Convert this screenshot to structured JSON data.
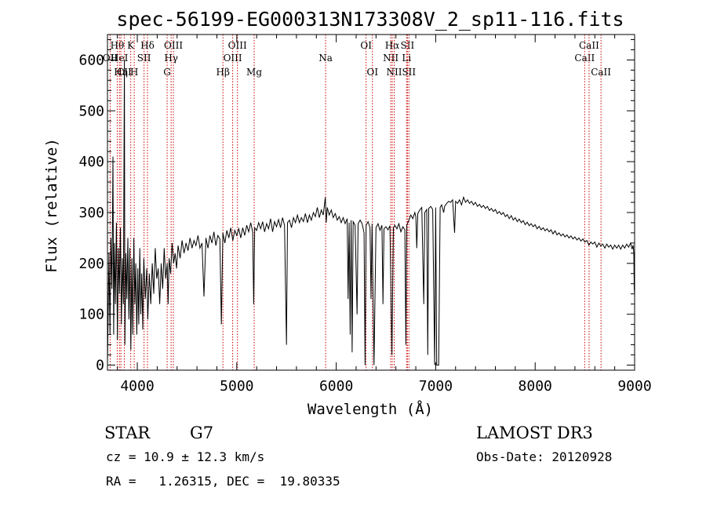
{
  "chart_data": {
    "type": "line",
    "title": "spec-56199-EG000313N173308V_2_sp11-116.fits",
    "xlabel": "Wavelength (Å)",
    "ylabel": "Flux (relative)",
    "xlim": [
      3700,
      9000
    ],
    "ylim": [
      -10,
      650
    ],
    "x_ticks": [
      4000,
      5000,
      6000,
      7000,
      8000,
      9000
    ],
    "y_ticks": [
      0,
      100,
      200,
      300,
      400,
      500,
      600
    ],
    "spectrum": {
      "name": "flux",
      "points": [
        [
          3700,
          0
        ],
        [
          3715,
          220
        ],
        [
          3725,
          60
        ],
        [
          3735,
          250
        ],
        [
          3745,
          150
        ],
        [
          3755,
          410
        ],
        [
          3762,
          60
        ],
        [
          3770,
          240
        ],
        [
          3780,
          120
        ],
        [
          3790,
          280
        ],
        [
          3800,
          50
        ],
        [
          3810,
          230
        ],
        [
          3820,
          140
        ],
        [
          3830,
          270
        ],
        [
          3840,
          80
        ],
        [
          3850,
          210
        ],
        [
          3860,
          120
        ],
        [
          3870,
          600
        ],
        [
          3875,
          40
        ],
        [
          3885,
          220
        ],
        [
          3895,
          130
        ],
        [
          3905,
          250
        ],
        [
          3915,
          90
        ],
        [
          3925,
          230
        ],
        [
          3935,
          30
        ],
        [
          3945,
          210
        ],
        [
          3955,
          60
        ],
        [
          3965,
          250
        ],
        [
          3975,
          120
        ],
        [
          3985,
          200
        ],
        [
          3995,
          60
        ],
        [
          4005,
          190
        ],
        [
          4015,
          80
        ],
        [
          4025,
          230
        ],
        [
          4035,
          100
        ],
        [
          4045,
          180
        ],
        [
          4055,
          70
        ],
        [
          4065,
          210
        ],
        [
          4080,
          130
        ],
        [
          4095,
          190
        ],
        [
          4105,
          90
        ],
        [
          4120,
          180
        ],
        [
          4135,
          120
        ],
        [
          4150,
          200
        ],
        [
          4165,
          140
        ],
        [
          4180,
          230
        ],
        [
          4195,
          170
        ],
        [
          4210,
          190
        ],
        [
          4225,
          120
        ],
        [
          4240,
          200
        ],
        [
          4255,
          150
        ],
        [
          4270,
          230
        ],
        [
          4285,
          170
        ],
        [
          4300,
          200
        ],
        [
          4310,
          120
        ],
        [
          4320,
          210
        ],
        [
          4335,
          180
        ],
        [
          4350,
          240
        ],
        [
          4365,
          200
        ],
        [
          4380,
          220
        ],
        [
          4395,
          190
        ],
        [
          4410,
          235
        ],
        [
          4430,
          210
        ],
        [
          4450,
          245
        ],
        [
          4470,
          220
        ],
        [
          4490,
          240
        ],
        [
          4510,
          225
        ],
        [
          4530,
          250
        ],
        [
          4550,
          230
        ],
        [
          4570,
          245
        ],
        [
          4590,
          235
        ],
        [
          4610,
          255
        ],
        [
          4630,
          230
        ],
        [
          4650,
          240
        ],
        [
          4670,
          135
        ],
        [
          4690,
          250
        ],
        [
          4710,
          230
        ],
        [
          4730,
          255
        ],
        [
          4750,
          240
        ],
        [
          4770,
          262
        ],
        [
          4790,
          235
        ],
        [
          4810,
          255
        ],
        [
          4830,
          248
        ],
        [
          4845,
          80
        ],
        [
          4860,
          260
        ],
        [
          4880,
          240
        ],
        [
          4900,
          265
        ],
        [
          4920,
          250
        ],
        [
          4940,
          270
        ],
        [
          4960,
          245
        ],
        [
          4980,
          265
        ],
        [
          5000,
          255
        ],
        [
          5020,
          268
        ],
        [
          5040,
          250
        ],
        [
          5060,
          270
        ],
        [
          5080,
          255
        ],
        [
          5100,
          275
        ],
        [
          5120,
          262
        ],
        [
          5140,
          280
        ],
        [
          5160,
          262
        ],
        [
          5170,
          120
        ],
        [
          5180,
          270
        ],
        [
          5200,
          265
        ],
        [
          5220,
          280
        ],
        [
          5240,
          268
        ],
        [
          5260,
          282
        ],
        [
          5280,
          262
        ],
        [
          5300,
          278
        ],
        [
          5320,
          268
        ],
        [
          5340,
          288
        ],
        [
          5360,
          262
        ],
        [
          5380,
          282
        ],
        [
          5400,
          272
        ],
        [
          5420,
          286
        ],
        [
          5440,
          270
        ],
        [
          5460,
          290
        ],
        [
          5480,
          275
        ],
        [
          5500,
          40
        ],
        [
          5510,
          280
        ],
        [
          5530,
          285
        ],
        [
          5550,
          270
        ],
        [
          5570,
          290
        ],
        [
          5590,
          280
        ],
        [
          5610,
          295
        ],
        [
          5630,
          280
        ],
        [
          5650,
          290
        ],
        [
          5670,
          282
        ],
        [
          5690,
          298
        ],
        [
          5710,
          280
        ],
        [
          5730,
          295
        ],
        [
          5750,
          285
        ],
        [
          5770,
          300
        ],
        [
          5790,
          292
        ],
        [
          5810,
          310
        ],
        [
          5830,
          290
        ],
        [
          5850,
          305
        ],
        [
          5870,
          295
        ],
        [
          5890,
          330
        ],
        [
          5900,
          280
        ],
        [
          5910,
          310
        ],
        [
          5930,
          295
        ],
        [
          5950,
          305
        ],
        [
          5970,
          290
        ],
        [
          5990,
          298
        ],
        [
          6010,
          285
        ],
        [
          6030,
          292
        ],
        [
          6050,
          280
        ],
        [
          6070,
          290
        ],
        [
          6090,
          278
        ],
        [
          6110,
          288
        ],
        [
          6120,
          130
        ],
        [
          6130,
          280
        ],
        [
          6140,
          60
        ],
        [
          6150,
          285
        ],
        [
          6160,
          25
        ],
        [
          6170,
          282
        ],
        [
          6190,
          275
        ],
        [
          6210,
          100
        ],
        [
          6220,
          278
        ],
        [
          6240,
          285
        ],
        [
          6260,
          278
        ],
        [
          6280,
          260
        ],
        [
          6290,
          0
        ],
        [
          6300,
          275
        ],
        [
          6320,
          282
        ],
        [
          6340,
          270
        ],
        [
          6350,
          130
        ],
        [
          6360,
          278
        ],
        [
          6380,
          0
        ],
        [
          6400,
          270
        ],
        [
          6420,
          278
        ],
        [
          6440,
          265
        ],
        [
          6460,
          275
        ],
        [
          6470,
          120
        ],
        [
          6480,
          268
        ],
        [
          6500,
          272
        ],
        [
          6520,
          266
        ],
        [
          6540,
          274
        ],
        [
          6560,
          20
        ],
        [
          6575,
          270
        ],
        [
          6590,
          275
        ],
        [
          6610,
          268
        ],
        [
          6630,
          278
        ],
        [
          6650,
          262
        ],
        [
          6670,
          272
        ],
        [
          6690,
          266
        ],
        [
          6700,
          40
        ],
        [
          6710,
          275
        ],
        [
          6730,
          285
        ],
        [
          6750,
          295
        ],
        [
          6770,
          288
        ],
        [
          6790,
          300
        ],
        [
          6800,
          292
        ],
        [
          6810,
          230
        ],
        [
          6820,
          298
        ],
        [
          6840,
          305
        ],
        [
          6860,
          310
        ],
        [
          6880,
          120
        ],
        [
          6890,
          300
        ],
        [
          6910,
          306
        ],
        [
          6920,
          20
        ],
        [
          6930,
          308
        ],
        [
          6950,
          312
        ],
        [
          6970,
          306
        ],
        [
          6990,
          0
        ],
        [
          7000,
          310
        ],
        [
          7010,
          0
        ],
        [
          7030,
          0
        ],
        [
          7045,
          310
        ],
        [
          7060,
          315
        ],
        [
          7080,
          300
        ],
        [
          7090,
          312
        ],
        [
          7110,
          318
        ],
        [
          7130,
          322
        ],
        [
          7150,
          320
        ],
        [
          7170,
          325
        ],
        [
          7190,
          260
        ],
        [
          7200,
          322
        ],
        [
          7220,
          318
        ],
        [
          7240,
          325
        ],
        [
          7260,
          315
        ],
        [
          7280,
          330
        ],
        [
          7300,
          320
        ],
        [
          7320,
          325
        ],
        [
          7340,
          318
        ],
        [
          7360,
          322
        ],
        [
          7380,
          315
        ],
        [
          7400,
          320
        ],
        [
          7420,
          312
        ],
        [
          7440,
          316
        ],
        [
          7460,
          310
        ],
        [
          7480,
          314
        ],
        [
          7500,
          308
        ],
        [
          7520,
          312
        ],
        [
          7540,
          304
        ],
        [
          7560,
          308
        ],
        [
          7580,
          302
        ],
        [
          7600,
          306
        ],
        [
          7620,
          298
        ],
        [
          7640,
          302
        ],
        [
          7660,
          296
        ],
        [
          7680,
          300
        ],
        [
          7700,
          292
        ],
        [
          7720,
          296
        ],
        [
          7740,
          288
        ],
        [
          7760,
          294
        ],
        [
          7780,
          285
        ],
        [
          7800,
          290
        ],
        [
          7820,
          282
        ],
        [
          7840,
          287
        ],
        [
          7860,
          280
        ],
        [
          7880,
          284
        ],
        [
          7900,
          276
        ],
        [
          7920,
          281
        ],
        [
          7940,
          274
        ],
        [
          7960,
          278
        ],
        [
          7980,
          272
        ],
        [
          8000,
          276
        ],
        [
          8020,
          268
        ],
        [
          8040,
          273
        ],
        [
          8060,
          266
        ],
        [
          8080,
          270
        ],
        [
          8100,
          264
        ],
        [
          8120,
          268
        ],
        [
          8140,
          262
        ],
        [
          8160,
          266
        ],
        [
          8180,
          258
        ],
        [
          8200,
          264
        ],
        [
          8220,
          256
        ],
        [
          8240,
          260
        ],
        [
          8260,
          254
        ],
        [
          8280,
          258
        ],
        [
          8300,
          252
        ],
        [
          8320,
          256
        ],
        [
          8340,
          250
        ],
        [
          8360,
          254
        ],
        [
          8380,
          248
        ],
        [
          8400,
          252
        ],
        [
          8420,
          246
        ],
        [
          8440,
          250
        ],
        [
          8460,
          244
        ],
        [
          8480,
          248
        ],
        [
          8500,
          242
        ],
        [
          8520,
          245
        ],
        [
          8540,
          236
        ],
        [
          8560,
          242
        ],
        [
          8580,
          238
        ],
        [
          8600,
          242
        ],
        [
          8620,
          232
        ],
        [
          8640,
          240
        ],
        [
          8660,
          234
        ],
        [
          8680,
          238
        ],
        [
          8700,
          230
        ],
        [
          8720,
          238
        ],
        [
          8740,
          232
        ],
        [
          8760,
          236
        ],
        [
          8780,
          228
        ],
        [
          8800,
          236
        ],
        [
          8820,
          230
        ],
        [
          8840,
          236
        ],
        [
          8860,
          228
        ],
        [
          8880,
          236
        ],
        [
          8900,
          230
        ],
        [
          8920,
          238
        ],
        [
          8940,
          232
        ],
        [
          8960,
          240
        ],
        [
          8975,
          228
        ],
        [
          8985,
          236
        ],
        [
          8992,
          220
        ],
        [
          8996,
          150
        ],
        [
          9000,
          140
        ]
      ]
    },
    "line_markers": [
      {
        "wavelength": 3798,
        "label": "Hθ",
        "row": 1
      },
      {
        "wavelength": 3727,
        "label": "OII",
        "row": 2
      },
      {
        "wavelength": 3820,
        "label": "HeI",
        "row": 2
      },
      {
        "wavelength": 3835,
        "label": "Hη",
        "row": 3
      },
      {
        "wavelength": 3869,
        "label": "CII",
        "row": 3
      },
      {
        "wavelength": 3934,
        "label": "K",
        "row": 1
      },
      {
        "wavelength": 3969,
        "label": "H",
        "row": 3
      },
      {
        "wavelength": 4068,
        "label": "SII",
        "row": 2
      },
      {
        "wavelength": 4102,
        "label": "Hδ",
        "row": 1
      },
      {
        "wavelength": 4300,
        "label": "G",
        "row": 3
      },
      {
        "wavelength": 4340,
        "label": "Hγ",
        "row": 2
      },
      {
        "wavelength": 4363,
        "label": "OIII",
        "row": 1
      },
      {
        "wavelength": 4861,
        "label": "Hβ",
        "row": 3
      },
      {
        "wavelength": 4959,
        "label": "OIII",
        "row": 2
      },
      {
        "wavelength": 5007,
        "label": "OIII",
        "row": 1
      },
      {
        "wavelength": 5175,
        "label": "Mg",
        "row": 3
      },
      {
        "wavelength": 5893,
        "label": "Na",
        "row": 2
      },
      {
        "wavelength": 6300,
        "label": "OI",
        "row": 1
      },
      {
        "wavelength": 6364,
        "label": "OI",
        "row": 3
      },
      {
        "wavelength": 6548,
        "label": "NII",
        "row": 2
      },
      {
        "wavelength": 6563,
        "label": "Hα",
        "row": 1
      },
      {
        "wavelength": 6583,
        "label": "NII",
        "row": 3
      },
      {
        "wavelength": 6707,
        "label": "Li",
        "row": 2
      },
      {
        "wavelength": 6716,
        "label": "SII",
        "row": 1
      },
      {
        "wavelength": 6731,
        "label": "SII",
        "row": 3
      },
      {
        "wavelength": 8498,
        "label": "CaII",
        "row": 2
      },
      {
        "wavelength": 8542,
        "label": "CaII",
        "row": 1
      },
      {
        "wavelength": 8662,
        "label": "CaII",
        "row": 3
      }
    ],
    "colors": {
      "spectrum": "#000000",
      "marker_line": "#cc0000"
    }
  },
  "info": {
    "object_class": "STAR",
    "subclass": "G7",
    "survey": "LAMOST DR3",
    "redshift_text": "cz = 10.9 ± 12.3 km/s",
    "obs_date_text": "Obs-Date: 20120928",
    "coords_text": "RA =   1.26315, DEC =  19.80335"
  }
}
